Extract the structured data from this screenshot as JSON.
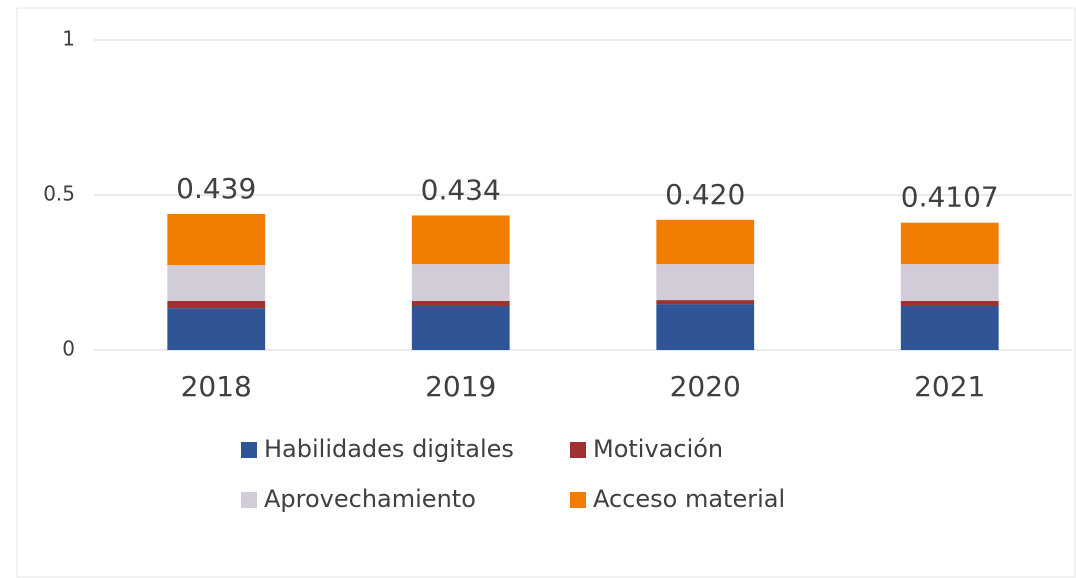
{
  "chart_data": {
    "type": "stacked_bar",
    "categories": [
      "2018",
      "2019",
      "2020",
      "2021"
    ],
    "series": [
      {
        "name": "Habilidades digitales",
        "color": "#2f5597",
        "values": [
          0.135,
          0.142,
          0.148,
          0.142
        ]
      },
      {
        "name": "Motivación",
        "color": "#9e3232",
        "values": [
          0.023,
          0.016,
          0.013,
          0.016
        ]
      },
      {
        "name": "Aprovechamiento",
        "color": "#d2ccd9",
        "values": [
          0.116,
          0.119,
          0.116,
          0.119
        ]
      },
      {
        "name": "Acceso material",
        "color": "#f07c00",
        "values": [
          0.165,
          0.157,
          0.143,
          0.1337
        ]
      }
    ],
    "totals": [
      0.439,
      0.434,
      0.42,
      0.4107
    ],
    "total_labels": [
      "0.439",
      "0.434",
      "0.420",
      "0.4107"
    ],
    "ylim": [
      0,
      1
    ],
    "yticks": [
      0,
      0.5,
      1
    ],
    "grid": true,
    "legend": "bottom"
  }
}
